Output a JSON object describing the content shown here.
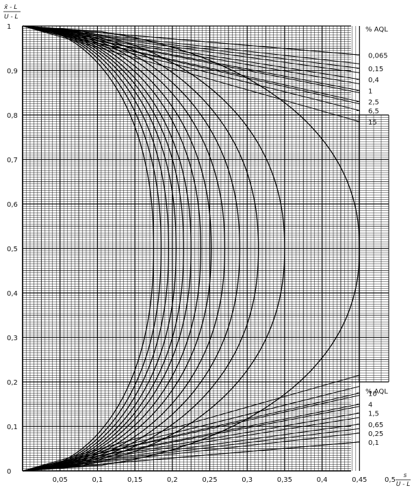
{
  "chart_data": {
    "type": "line",
    "title": "",
    "xlabel": {
      "numerator": "s",
      "denominator": "U - L"
    },
    "ylabel": {
      "numerator": "x̄ - L",
      "denominator": "U - L"
    },
    "xlim": [
      0,
      0.5
    ],
    "ylim": [
      0,
      1
    ],
    "grid": true,
    "x_ticks": [
      "0",
      "0,05",
      "0,1",
      "0,15",
      "0,2",
      "0,25",
      "0,3",
      "0,35",
      "0,4",
      "0,45",
      "0,5"
    ],
    "y_ticks": [
      "0",
      "0,1",
      "0,2",
      "0,3",
      "0,4",
      "0,5",
      "0,6",
      "0,7",
      "0,8",
      "0,9",
      "1"
    ],
    "legends": [
      {
        "title": "% AQL",
        "entries": [
          "0,065",
          "0,15",
          "0,4",
          "1",
          "2,5",
          "6,5",
          "15"
        ]
      },
      {
        "title": "% AQL",
        "entries": [
          "10",
          "4",
          "1,5",
          "0,65",
          "0,25",
          "0,1"
        ]
      }
    ],
    "series": [
      {
        "name": "0,065",
        "max_s": 0.175,
        "shape": "acceptance-boundary"
      },
      {
        "name": "0,1",
        "max_s": 0.185,
        "shape": "acceptance-boundary"
      },
      {
        "name": "0,15",
        "max_s": 0.195,
        "shape": "acceptance-boundary"
      },
      {
        "name": "0,25",
        "max_s": 0.205,
        "shape": "acceptance-boundary"
      },
      {
        "name": "0,4",
        "max_s": 0.215,
        "shape": "acceptance-boundary"
      },
      {
        "name": "0,65",
        "max_s": 0.225,
        "shape": "acceptance-boundary"
      },
      {
        "name": "1",
        "max_s": 0.238,
        "shape": "acceptance-boundary"
      },
      {
        "name": "1,5",
        "max_s": 0.252,
        "shape": "acceptance-boundary"
      },
      {
        "name": "2,5",
        "max_s": 0.27,
        "shape": "acceptance-boundary"
      },
      {
        "name": "4",
        "max_s": 0.29,
        "shape": "acceptance-boundary"
      },
      {
        "name": "6,5",
        "max_s": 0.315,
        "shape": "acceptance-boundary"
      },
      {
        "name": "10",
        "max_s": 0.35,
        "shape": "acceptance-boundary"
      },
      {
        "name": "15",
        "max_s": 0.45,
        "shape": "acceptance-boundary"
      }
    ],
    "upper_lines_end_y": [
      0.935,
      0.905,
      0.88,
      0.855,
      0.83,
      0.81,
      0.785
    ],
    "lower_lines_end_y": [
      0.175,
      0.15,
      0.13,
      0.105,
      0.085,
      0.065
    ]
  }
}
